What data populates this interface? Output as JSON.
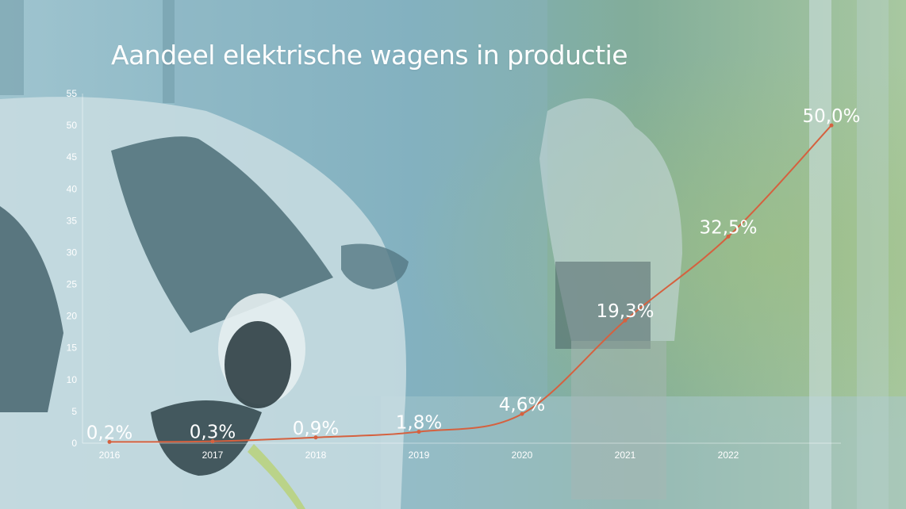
{
  "title": "Aandeel elektrische wagens in productie",
  "colors": {
    "line": "#d5613f",
    "overlay": "#7fb2c2",
    "text": "#ffffff"
  },
  "background": {
    "description_icon": "car-charging-photo",
    "color": "#8db6c4"
  },
  "chart_data": {
    "type": "line",
    "title": "Aandeel elektrische wagens in productie",
    "x": [
      "2016",
      "2017",
      "2018",
      "2019",
      "2020",
      "2021",
      "2022",
      ""
    ],
    "series": [
      {
        "values": [
          0.2,
          0.3,
          0.9,
          1.8,
          4.6,
          19.3,
          32.5,
          50.0
        ]
      }
    ],
    "data_labels": [
      "0,2%",
      "0,3%",
      "0,9%",
      "1,8%",
      "4,6%",
      "19,3%",
      "32,5%",
      "50,0%"
    ],
    "y_ticks": [
      0,
      5,
      10,
      15,
      20,
      25,
      30,
      35,
      40,
      45,
      50,
      55
    ],
    "ylim": [
      0,
      55
    ],
    "grid": false,
    "legend": "none"
  }
}
